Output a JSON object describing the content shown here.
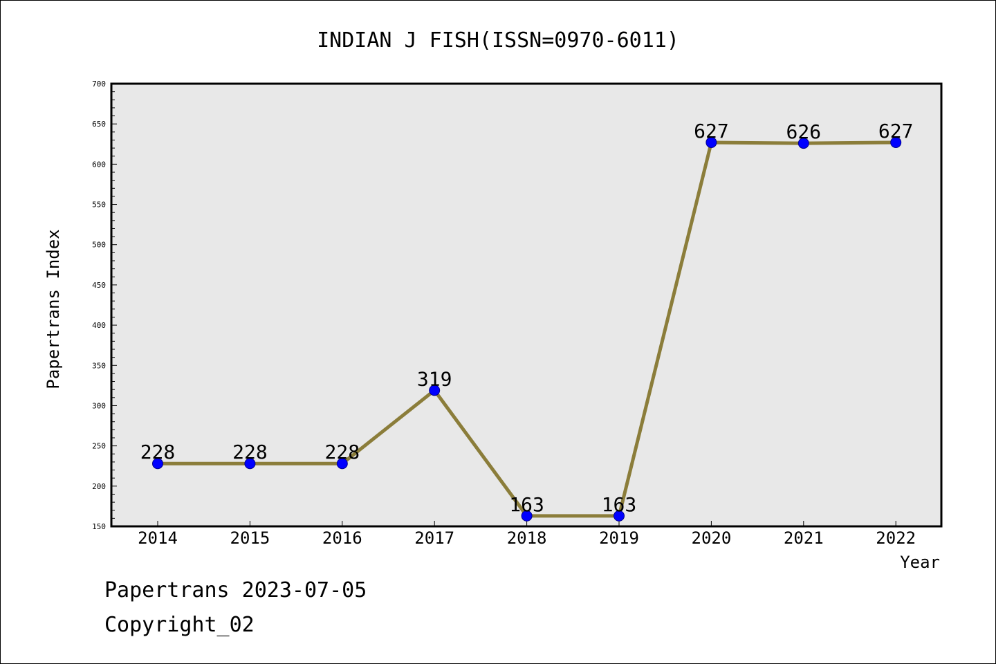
{
  "chart_data": {
    "type": "line",
    "title": "INDIAN J FISH(ISSN=0970-6011)",
    "xlabel": "Year",
    "ylabel": "Papertrans Index",
    "categories": [
      "2014",
      "2015",
      "2016",
      "2017",
      "2018",
      "2019",
      "2020",
      "2021",
      "2022"
    ],
    "series": [
      {
        "values": [
          228,
          228,
          228,
          319,
          163,
          163,
          627,
          626,
          627
        ],
        "line_color": "#8b7d3a",
        "marker_color": "#0000ff"
      }
    ],
    "data_labels": [
      "228",
      "228",
      "228",
      "319",
      "163",
      "163",
      "627",
      "626",
      "627"
    ],
    "ylim": [
      150,
      700
    ],
    "y_ticks": [
      "150",
      "200",
      "250",
      "300",
      "350",
      "400",
      "450",
      "500",
      "550",
      "600",
      "650",
      "700"
    ],
    "grid": false,
    "plot_background": "#e8e8e8"
  },
  "footer": {
    "line1": "Papertrans 2023-07-05",
    "line2": "Copyright_02"
  }
}
